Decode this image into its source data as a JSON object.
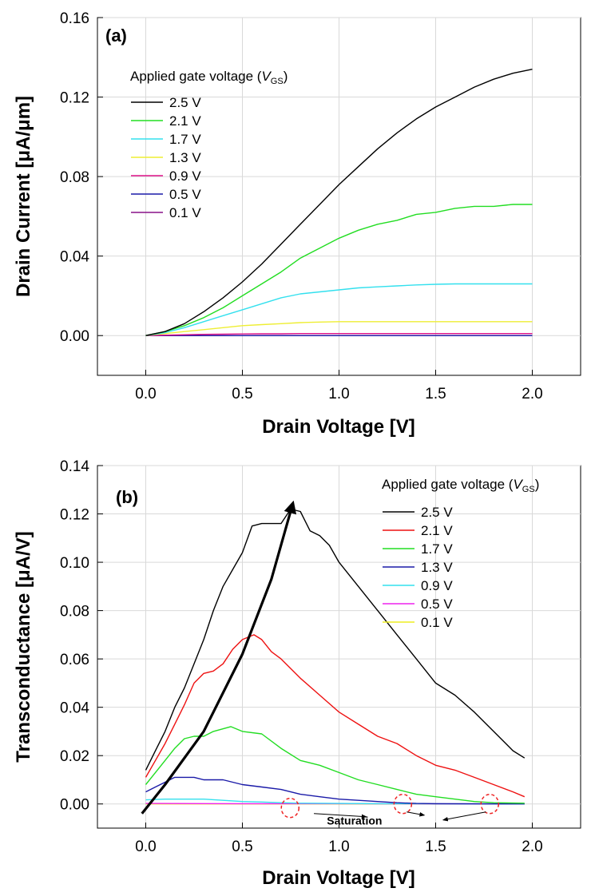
{
  "chart_data": [
    {
      "type": "line",
      "panel_label": "(a)",
      "xlabel": "Drain Voltage [V]",
      "ylabel": "Drain Current [μA/μm]",
      "xlim": [
        -0.25,
        2.25
      ],
      "ylim": [
        -0.02,
        0.16
      ],
      "xticks": [
        "0.0",
        "0.5",
        "1.0",
        "1.5",
        "2.0"
      ],
      "yticks": [
        "0.00",
        "0.04",
        "0.08",
        "0.12",
        "0.16"
      ],
      "grid": true,
      "legend_title": "Applied gate voltage (",
      "legend_title_var": "V",
      "legend_title_sub": "GS",
      "legend_title_end": ")",
      "legend_position": "top-left",
      "x": [
        0,
        0.1,
        0.2,
        0.3,
        0.4,
        0.5,
        0.6,
        0.7,
        0.8,
        0.9,
        1.0,
        1.1,
        1.2,
        1.3,
        1.4,
        1.5,
        1.6,
        1.7,
        1.8,
        1.9,
        2.0
      ],
      "series": [
        {
          "name": "2.5 V",
          "color": "#000000",
          "values": [
            0,
            0.002,
            0.006,
            0.012,
            0.019,
            0.027,
            0.036,
            0.046,
            0.056,
            0.066,
            0.076,
            0.085,
            0.094,
            0.102,
            0.109,
            0.115,
            0.12,
            0.125,
            0.129,
            0.132,
            0.134
          ]
        },
        {
          "name": "2.1 V",
          "color": "#22dd22",
          "values": [
            0,
            0.002,
            0.005,
            0.009,
            0.014,
            0.02,
            0.026,
            0.032,
            0.039,
            0.044,
            0.049,
            0.053,
            0.056,
            0.058,
            0.061,
            0.062,
            0.064,
            0.065,
            0.065,
            0.066,
            0.066
          ]
        },
        {
          "name": "1.7 V",
          "color": "#33e0ee",
          "values": [
            0,
            0.0015,
            0.004,
            0.007,
            0.01,
            0.013,
            0.016,
            0.019,
            0.021,
            0.022,
            0.023,
            0.024,
            0.0245,
            0.025,
            0.0255,
            0.0258,
            0.026,
            0.026,
            0.026,
            0.026,
            0.026
          ]
        },
        {
          "name": "1.3 V",
          "color": "#eeee33",
          "values": [
            0,
            0.001,
            0.002,
            0.003,
            0.004,
            0.005,
            0.0055,
            0.006,
            0.0065,
            0.0068,
            0.007,
            0.007,
            0.007,
            0.007,
            0.007,
            0.007,
            0.007,
            0.007,
            0.007,
            0.007,
            0.007
          ]
        },
        {
          "name": "0.9 V",
          "color": "#dd1188",
          "values": [
            0,
            0.0002,
            0.0004,
            0.0006,
            0.0007,
            0.0008,
            0.0009,
            0.0009,
            0.001,
            0.001,
            0.001,
            0.001,
            0.001,
            0.001,
            0.001,
            0.001,
            0.001,
            0.001,
            0.001,
            0.001,
            0.001
          ]
        },
        {
          "name": "0.5 V",
          "color": "#1a1aa8",
          "values": [
            0,
            0,
            0,
            0,
            0,
            0,
            0,
            0,
            0,
            0,
            0,
            0,
            0,
            0,
            0,
            0,
            0,
            0,
            0,
            0,
            0
          ]
        },
        {
          "name": "0.1 V",
          "color": "#881188",
          "values": [
            0,
            0,
            0,
            0,
            0,
            0,
            0,
            0,
            0,
            0,
            0,
            0,
            0,
            0,
            0,
            0,
            0,
            0,
            0,
            0,
            0
          ]
        }
      ]
    },
    {
      "type": "line",
      "panel_label": "(b)",
      "xlabel": "Drain Voltage [V]",
      "ylabel": "Transconductance [μA/V]",
      "xlim": [
        -0.25,
        2.25
      ],
      "ylim": [
        -0.01,
        0.14
      ],
      "xticks": [
        "0.0",
        "0.5",
        "1.0",
        "1.5",
        "2.0"
      ],
      "yticks": [
        "0.00",
        "0.02",
        "0.04",
        "0.06",
        "0.08",
        "0.10",
        "0.12",
        "0.14"
      ],
      "grid": true,
      "legend_title": "Applied gate voltage (",
      "legend_title_var": "V",
      "legend_title_sub": "GS",
      "legend_title_end": ")",
      "legend_position": "top-right",
      "annotation": "Saturation",
      "series": [
        {
          "name": "2.5 V",
          "color": "#000000",
          "points": [
            [
              0,
              0.014
            ],
            [
              0.05,
              0.022
            ],
            [
              0.1,
              0.03
            ],
            [
              0.15,
              0.04
            ],
            [
              0.2,
              0.048
            ],
            [
              0.25,
              0.058
            ],
            [
              0.3,
              0.068
            ],
            [
              0.35,
              0.08
            ],
            [
              0.4,
              0.09
            ],
            [
              0.45,
              0.097
            ],
            [
              0.5,
              0.104
            ],
            [
              0.55,
              0.115
            ],
            [
              0.6,
              0.116
            ],
            [
              0.7,
              0.116
            ],
            [
              0.75,
              0.122
            ],
            [
              0.8,
              0.121
            ],
            [
              0.85,
              0.113
            ],
            [
              0.9,
              0.111
            ],
            [
              0.95,
              0.107
            ],
            [
              1.0,
              0.1
            ],
            [
              1.1,
              0.09
            ],
            [
              1.2,
              0.08
            ],
            [
              1.3,
              0.07
            ],
            [
              1.4,
              0.06
            ],
            [
              1.5,
              0.05
            ],
            [
              1.6,
              0.045
            ],
            [
              1.7,
              0.038
            ],
            [
              1.8,
              0.03
            ],
            [
              1.9,
              0.022
            ],
            [
              1.96,
              0.019
            ]
          ]
        },
        {
          "name": "2.1 V",
          "color": "#ee1111",
          "points": [
            [
              0,
              0.011
            ],
            [
              0.05,
              0.018
            ],
            [
              0.1,
              0.025
            ],
            [
              0.15,
              0.033
            ],
            [
              0.2,
              0.041
            ],
            [
              0.25,
              0.05
            ],
            [
              0.3,
              0.054
            ],
            [
              0.35,
              0.055
            ],
            [
              0.4,
              0.058
            ],
            [
              0.45,
              0.064
            ],
            [
              0.5,
              0.068
            ],
            [
              0.56,
              0.07
            ],
            [
              0.6,
              0.068
            ],
            [
              0.65,
              0.063
            ],
            [
              0.7,
              0.06
            ],
            [
              0.8,
              0.052
            ],
            [
              0.9,
              0.045
            ],
            [
              1.0,
              0.038
            ],
            [
              1.1,
              0.033
            ],
            [
              1.2,
              0.028
            ],
            [
              1.3,
              0.025
            ],
            [
              1.4,
              0.02
            ],
            [
              1.5,
              0.016
            ],
            [
              1.6,
              0.014
            ],
            [
              1.7,
              0.011
            ],
            [
              1.8,
              0.008
            ],
            [
              1.9,
              0.005
            ],
            [
              1.96,
              0.003
            ]
          ]
        },
        {
          "name": "1.7 V",
          "color": "#22dd22",
          "points": [
            [
              0,
              0.008
            ],
            [
              0.05,
              0.013
            ],
            [
              0.1,
              0.018
            ],
            [
              0.15,
              0.023
            ],
            [
              0.2,
              0.027
            ],
            [
              0.25,
              0.028
            ],
            [
              0.3,
              0.028
            ],
            [
              0.35,
              0.03
            ],
            [
              0.44,
              0.032
            ],
            [
              0.5,
              0.03
            ],
            [
              0.6,
              0.029
            ],
            [
              0.7,
              0.023
            ],
            [
              0.8,
              0.018
            ],
            [
              0.9,
              0.016
            ],
            [
              1.0,
              0.013
            ],
            [
              1.1,
              0.01
            ],
            [
              1.2,
              0.008
            ],
            [
              1.3,
              0.006
            ],
            [
              1.4,
              0.004
            ],
            [
              1.5,
              0.003
            ],
            [
              1.6,
              0.002
            ],
            [
              1.7,
              0.001
            ],
            [
              1.8,
              0.0005
            ],
            [
              1.96,
              0.0003
            ]
          ]
        },
        {
          "name": "1.3 V",
          "color": "#1a1aa8",
          "points": [
            [
              0,
              0.005
            ],
            [
              0.05,
              0.007
            ],
            [
              0.1,
              0.009
            ],
            [
              0.15,
              0.011
            ],
            [
              0.2,
              0.011
            ],
            [
              0.25,
              0.011
            ],
            [
              0.3,
              0.01
            ],
            [
              0.4,
              0.01
            ],
            [
              0.5,
              0.008
            ],
            [
              0.6,
              0.007
            ],
            [
              0.7,
              0.006
            ],
            [
              0.8,
              0.004
            ],
            [
              0.9,
              0.003
            ],
            [
              1.0,
              0.002
            ],
            [
              1.1,
              0.0015
            ],
            [
              1.2,
              0.001
            ],
            [
              1.3,
              0.0005
            ],
            [
              1.4,
              0.0002
            ],
            [
              1.5,
              0.0001
            ],
            [
              1.96,
              0
            ]
          ]
        },
        {
          "name": "0.9 V",
          "color": "#33e0ee",
          "points": [
            [
              0,
              0.0017
            ],
            [
              0.1,
              0.002
            ],
            [
              0.2,
              0.002
            ],
            [
              0.3,
              0.002
            ],
            [
              0.4,
              0.0015
            ],
            [
              0.5,
              0.001
            ],
            [
              0.6,
              0.0008
            ],
            [
              0.7,
              0.0005
            ],
            [
              0.8,
              0.0003
            ],
            [
              1.0,
              0.0002
            ],
            [
              1.2,
              0.0001
            ],
            [
              1.96,
              0
            ]
          ]
        },
        {
          "name": "0.5 V",
          "color": "#ee22ee",
          "points": [
            [
              0,
              0.0002
            ],
            [
              0.5,
              0.0001
            ],
            [
              1.0,
              0.0001
            ],
            [
              1.96,
              0
            ]
          ]
        },
        {
          "name": "0.1 V",
          "color": "#eeee22",
          "points": [
            [
              0,
              0
            ],
            [
              0.5,
              0
            ],
            [
              1.0,
              0
            ],
            [
              1.96,
              0
            ]
          ]
        }
      ],
      "arrow_curve": [
        [
          -0.02,
          -0.004
        ],
        [
          0.1,
          0.008
        ],
        [
          0.3,
          0.03
        ],
        [
          0.5,
          0.062
        ],
        [
          0.65,
          0.093
        ],
        [
          0.76,
          0.124
        ]
      ],
      "saturation_marks": [
        [
          0.78,
          0.0
        ],
        [
          1.33,
          0.0
        ],
        [
          1.78,
          0.0
        ]
      ]
    }
  ]
}
